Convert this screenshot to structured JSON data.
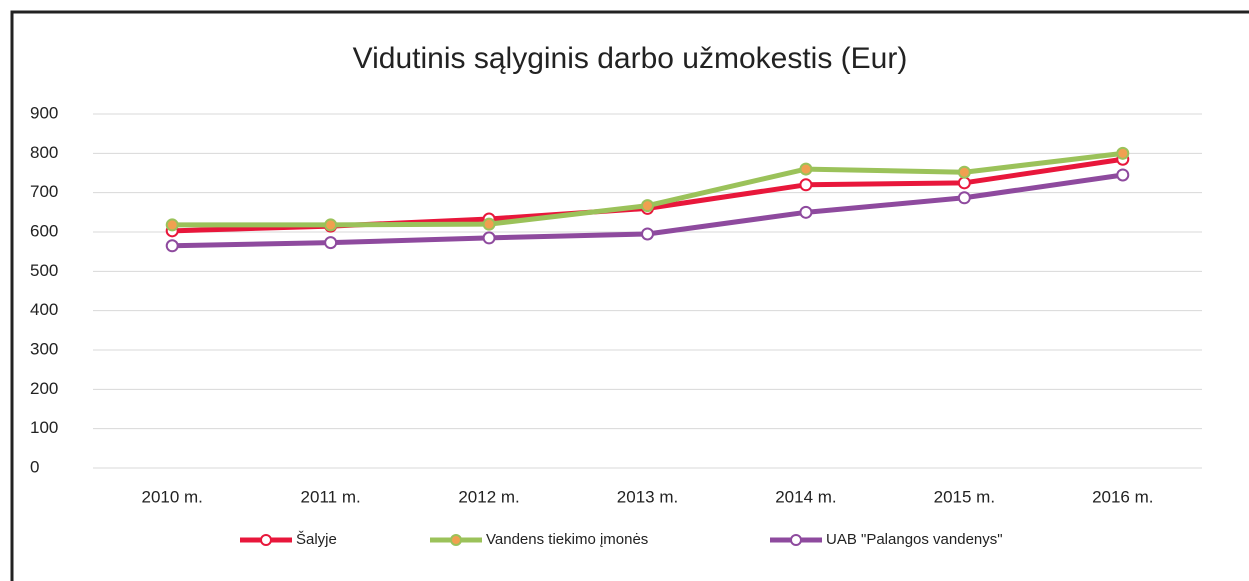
{
  "chart_data": {
    "type": "line",
    "title": "Vidutinis sąlyginis darbo užmokestis (Eur)",
    "categories": [
      "2010 m.",
      "2011 m.",
      "2012 m.",
      "2013 m.",
      "2014 m.",
      "2015 m.",
      "2016 m."
    ],
    "series": [
      {
        "name": "Šalyje",
        "color": "#e8173b",
        "marker_fill": "#ffffff",
        "values": [
          603,
          615,
          633,
          660,
          720,
          725,
          785
        ]
      },
      {
        "name": "Vandens tiekimo įmonės",
        "color": "#9bc25a",
        "marker_fill": "#f0a050",
        "values": [
          618,
          618,
          620,
          667,
          760,
          752,
          800
        ]
      },
      {
        "name": "UAB \"Palangos vandenys\"",
        "color": "#8e4a9e",
        "marker_fill": "#ffffff",
        "values": [
          565,
          573,
          585,
          595,
          650,
          687,
          745
        ]
      }
    ],
    "ylim": [
      0,
      900
    ],
    "yticks": [
      0,
      100,
      200,
      300,
      400,
      500,
      600,
      700,
      800,
      900
    ],
    "grid": true,
    "legend": "bottom"
  }
}
